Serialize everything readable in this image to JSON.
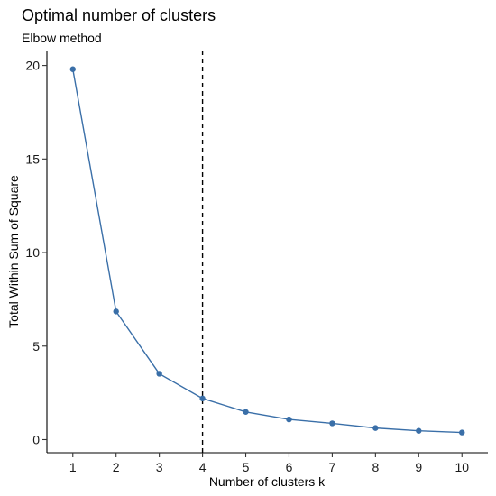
{
  "chart_data": {
    "type": "line",
    "title": "Optimal number of clusters",
    "subtitle": "Elbow method",
    "xlabel": "Number of clusters k",
    "ylabel": "Total Within Sum of Square",
    "x": [
      1,
      2,
      3,
      4,
      5,
      6,
      7,
      8,
      9,
      10
    ],
    "series": [
      {
        "values": [
          19.8,
          6.85,
          3.52,
          2.2,
          1.48,
          1.08,
          0.87,
          0.62,
          0.47,
          0.38
        ]
      }
    ],
    "x_ticks": [
      "1",
      "2",
      "3",
      "4",
      "5",
      "6",
      "7",
      "8",
      "9",
      "10"
    ],
    "y_ticks": [
      0,
      5,
      10,
      15,
      20
    ],
    "xlim": [
      0.4,
      10.6
    ],
    "ylim": [
      -0.7,
      20.8
    ],
    "vline_x": 4,
    "vline_style": "dashed",
    "grid": false,
    "colors": {
      "series": "#3a6fa8",
      "vline": "#000000"
    }
  }
}
